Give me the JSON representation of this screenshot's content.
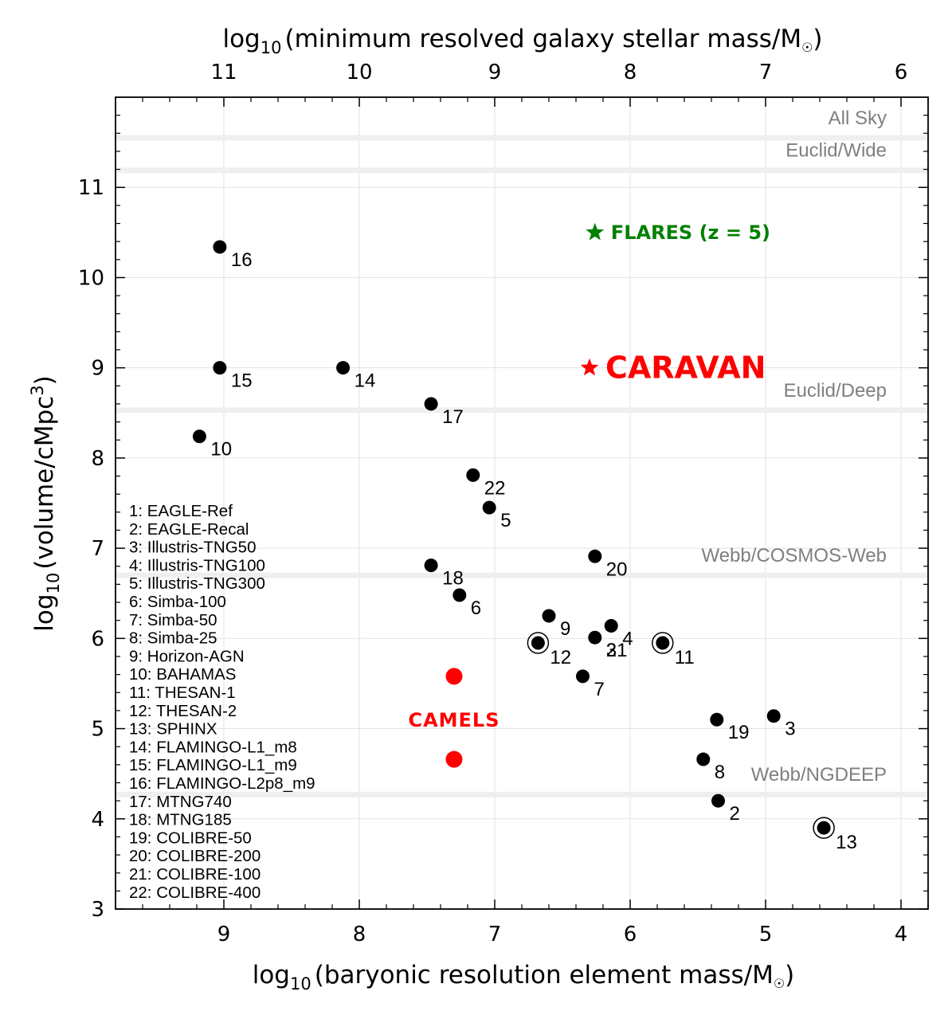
{
  "chart_data": {
    "type": "scatter",
    "xlabel_prefix": "log",
    "xlabel_sub": "10",
    "xlabel_rest": "(baryonic resolution element mass/M",
    "xlabel_end": ")",
    "ylabel_prefix": "log",
    "ylabel_sub": "10",
    "ylabel_rest": "(volume/cMpc",
    "ylabel_sup": "3",
    "ylabel_end": ")",
    "top_xlabel_prefix": "log",
    "top_xlabel_sub": "10",
    "top_xlabel_rest": "(minimum resolved galaxy stellar mass/M",
    "top_xlabel_end": ")",
    "xlim": [
      9.8,
      3.8
    ],
    "ylim": [
      3,
      12
    ],
    "x_ticks": [
      9,
      8,
      7,
      6,
      5,
      4
    ],
    "y_ticks": [
      3,
      4,
      5,
      6,
      7,
      8,
      9,
      10,
      11
    ],
    "top_x_ticks": [
      11,
      10,
      9,
      8,
      7,
      6
    ],
    "top_x_offset": 2,
    "grid": true,
    "points": [
      {
        "label": "16",
        "x": 9.03,
        "y": 10.34
      },
      {
        "label": "15",
        "x": 9.03,
        "y": 9.0
      },
      {
        "label": "14",
        "x": 8.12,
        "y": 9.0
      },
      {
        "label": "17",
        "x": 7.47,
        "y": 8.6
      },
      {
        "label": "10",
        "x": 9.18,
        "y": 8.24
      },
      {
        "label": "22",
        "x": 7.16,
        "y": 7.81
      },
      {
        "label": "5",
        "x": 7.04,
        "y": 7.45
      },
      {
        "label": "20",
        "x": 6.26,
        "y": 6.91
      },
      {
        "label": "18",
        "x": 7.47,
        "y": 6.81
      },
      {
        "label": "6",
        "x": 7.26,
        "y": 6.48
      },
      {
        "label": "9",
        "x": 6.6,
        "y": 6.25
      },
      {
        "label": "4",
        "x": 6.14,
        "y": 6.14
      },
      {
        "label": "21",
        "x": 6.26,
        "y": 6.01
      },
      {
        "label": "7",
        "x": 6.35,
        "y": 5.58
      },
      {
        "label": "19",
        "x": 5.36,
        "y": 5.1
      },
      {
        "label": "3",
        "x": 4.94,
        "y": 5.14
      },
      {
        "label": "8",
        "x": 5.46,
        "y": 4.66
      },
      {
        "label": "2",
        "x": 5.35,
        "y": 4.2
      }
    ],
    "ringed_points": [
      {
        "label": "12",
        "x": 6.68,
        "y": 5.95
      },
      {
        "label": "11",
        "x": 5.76,
        "y": 5.95
      },
      {
        "label": "13",
        "x": 4.57,
        "y": 3.9
      }
    ],
    "extra_labels": [
      {
        "label": "3",
        "x": 6.26,
        "y": 6.01
      }
    ],
    "camels": {
      "label": "CAMELS",
      "x": 7.3,
      "y_values": [
        5.58,
        4.66
      ],
      "color": "#ff0000"
    },
    "caravan": {
      "label": "CARAVAN",
      "x": 6.3,
      "y": 9.0,
      "color": "#ff0000"
    },
    "flares": {
      "label": "FLARES (z = 5)",
      "x": 6.26,
      "y": 10.5,
      "color": "#008000"
    },
    "survey_lines": [
      {
        "label": "All Sky",
        "y": 11.55
      },
      {
        "label": "Euclid/Wide",
        "y": 11.19
      },
      {
        "label": "Euclid/Deep",
        "y": 8.53
      },
      {
        "label": "Webb/COSMOS-Web",
        "y": 6.7
      },
      {
        "label": "Webb/NGDEEP",
        "y": 4.27
      }
    ],
    "legend": [
      "1: EAGLE-Ref",
      "2: EAGLE-Recal",
      "3: Illustris-TNG50",
      "4: Illustris-TNG100",
      "5: Illustris-TNG300",
      "6: Simba-100",
      "7: Simba-50",
      "8: Simba-25",
      "9: Horizon-AGN",
      "10: BAHAMAS",
      "11: THESAN-1",
      "12: THESAN-2",
      "13: SPHINX",
      "14: FLAMINGO-L1_m8",
      "15: FLAMINGO-L1_m9",
      "16: FLAMINGO-L2p8_m9",
      "17: MTNG740",
      "18: MTNG185",
      "19: COLIBRE-50",
      "20: COLIBRE-200",
      "21: COLIBRE-100",
      "22: COLIBRE-400"
    ],
    "legend_placement": "left",
    "colors": {
      "points": "#000000",
      "survey": "#7f7f7f",
      "survey_band": "#efefef",
      "grid": "#e2e2e2"
    }
  }
}
